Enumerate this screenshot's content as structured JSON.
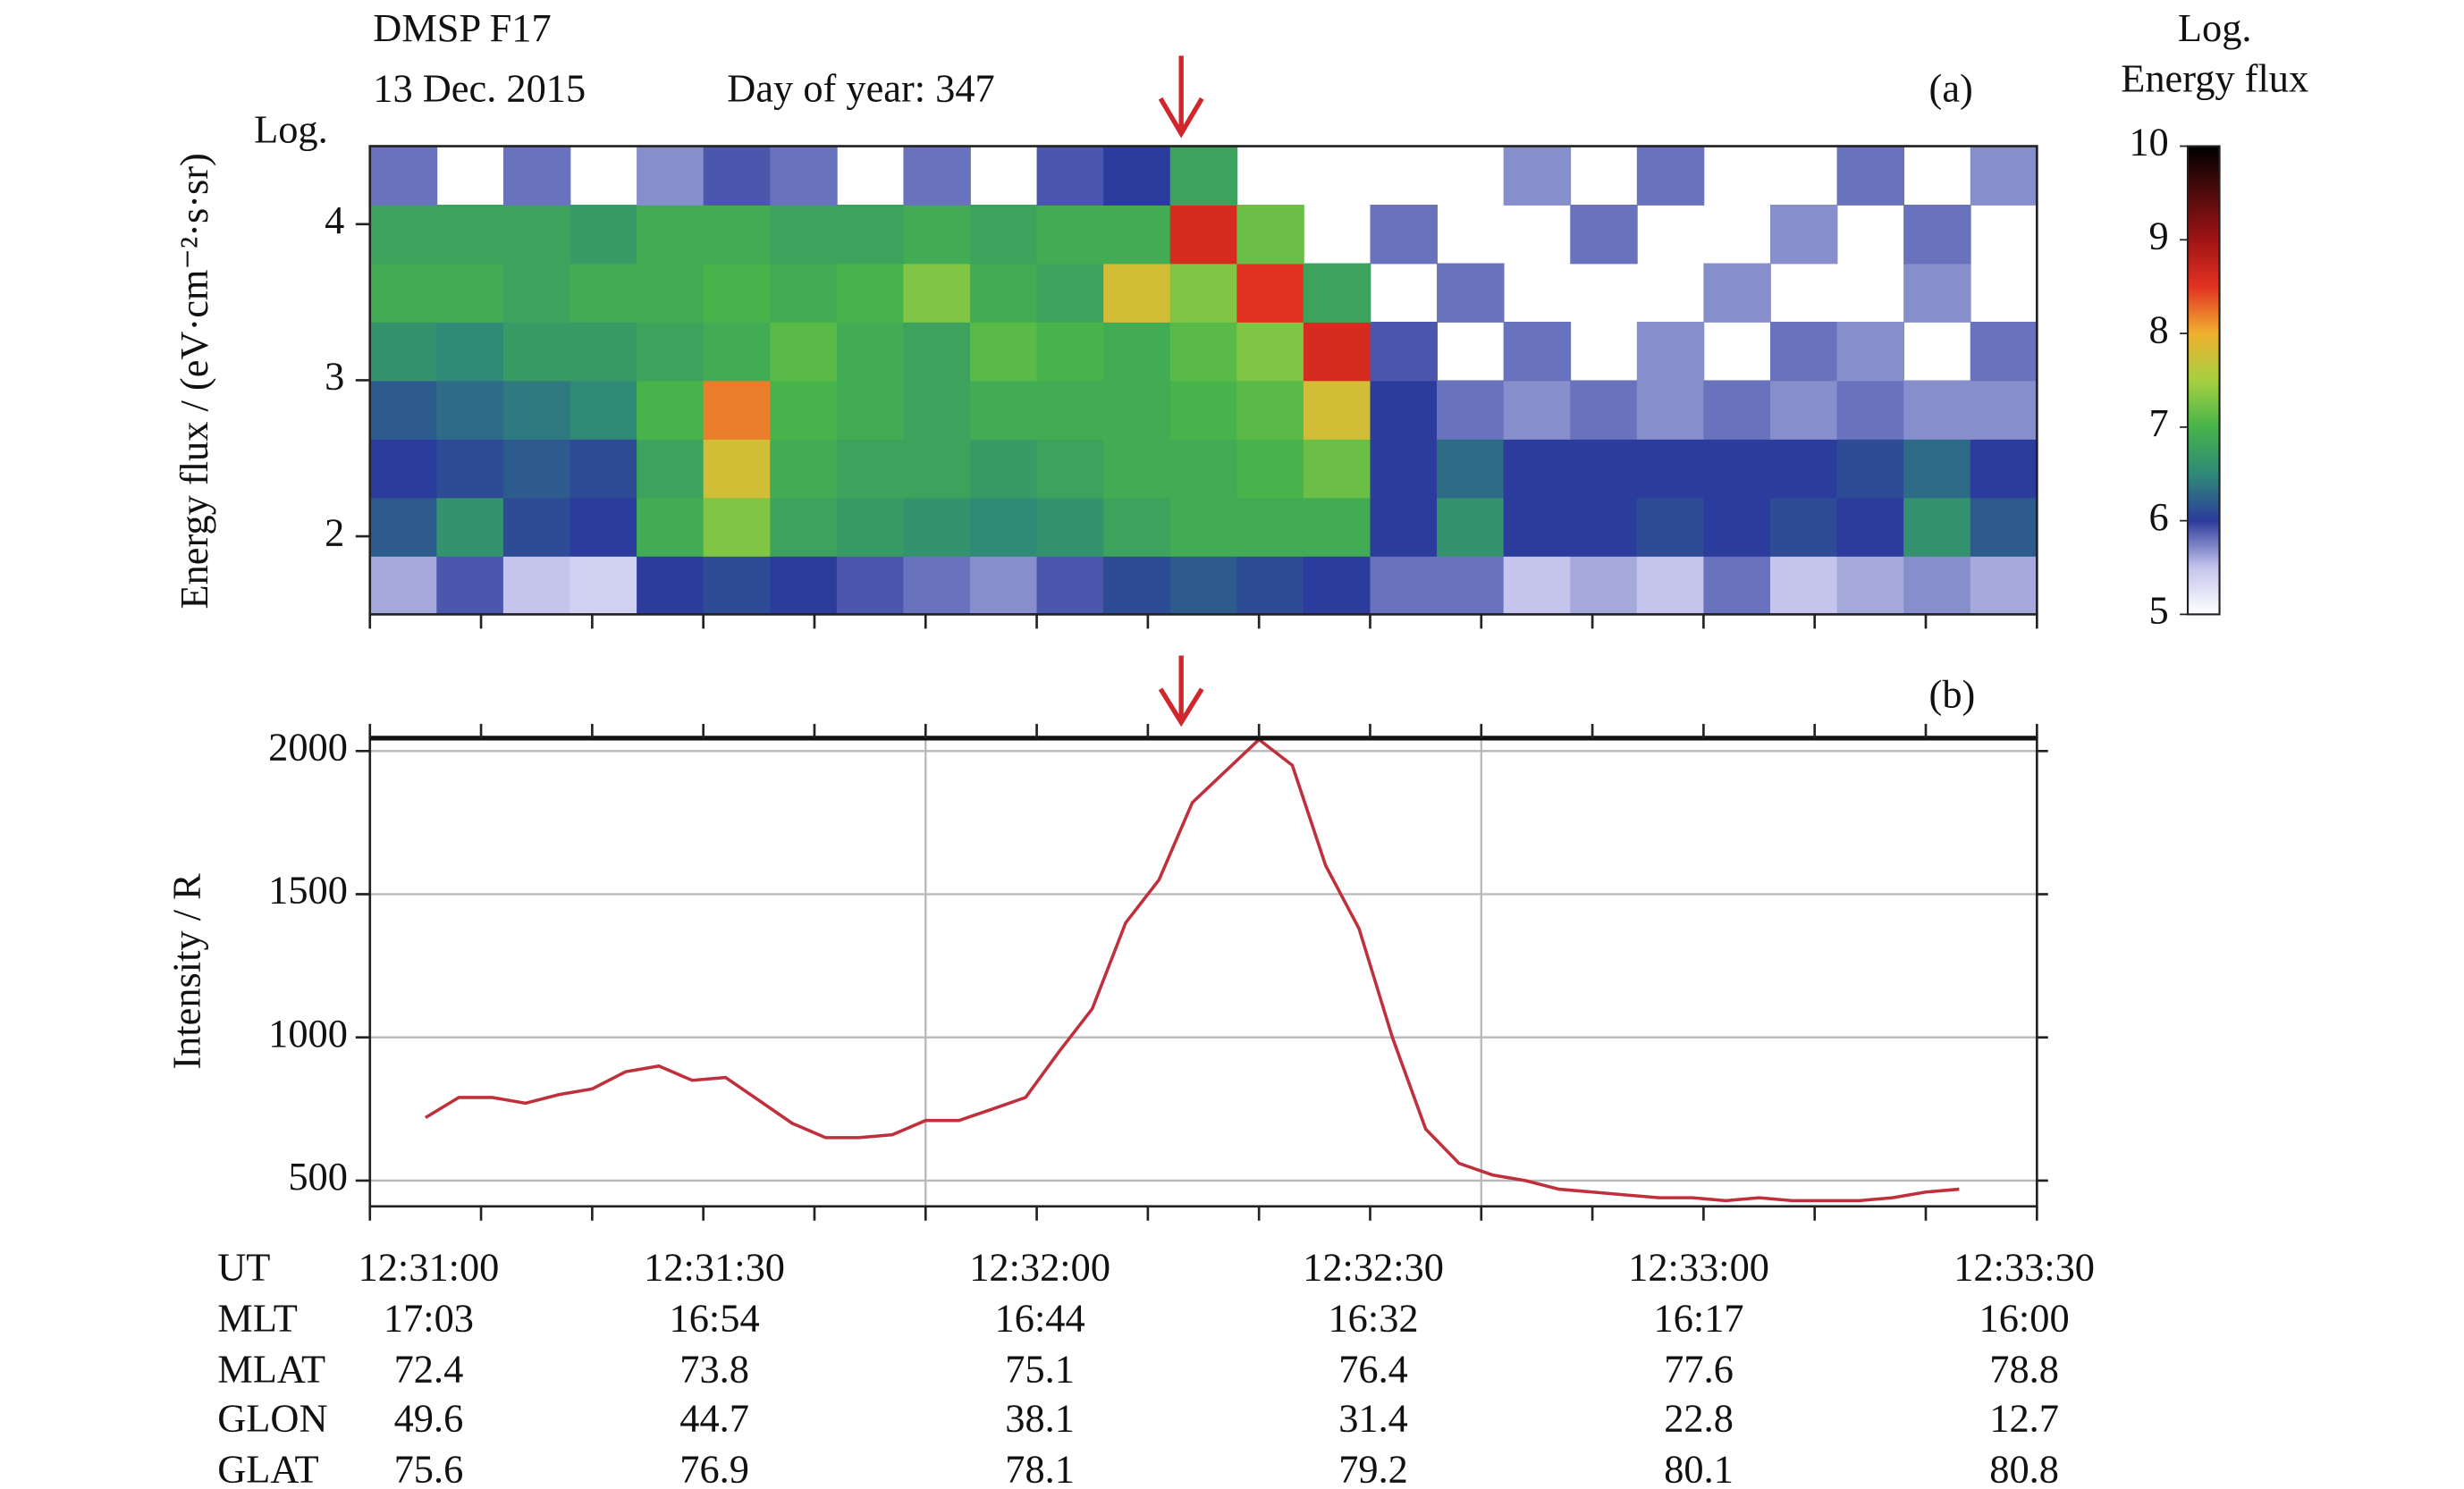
{
  "chart_data": [
    {
      "type": "heatmap",
      "title": "DMSP F17",
      "date": "13 Dec. 2015",
      "day_of_year": "Day of year: 347",
      "panel": "(a)",
      "ylabel_top": "Log.",
      "ylabel": "Energy flux / (eV·cm⁻²·s·sr)",
      "colorbar_title": [
        "Log.",
        "Energy flux"
      ],
      "xlim": [
        "12:31:00",
        "12:33:30"
      ],
      "xticks": [
        "12:31:00",
        "12:31:10",
        "12:31:20",
        "12:31:30",
        "12:31:40",
        "12:31:50",
        "12:32:00",
        "12:32:10",
        "12:32:20",
        "12:32:30",
        "12:32:40",
        "12:32:50",
        "12:33:00",
        "12:33:10",
        "12:33:20",
        "12:33:30"
      ],
      "ylim": [
        1.5,
        4.5
      ],
      "yticks": [
        2,
        3,
        4
      ],
      "arrow_x": "12:32:13",
      "x_bins": [
        "12:31:00",
        "12:31:06",
        "12:31:12",
        "12:31:18",
        "12:31:24",
        "12:31:30",
        "12:31:36",
        "12:31:42",
        "12:31:48",
        "12:31:54",
        "12:32:00",
        "12:32:06",
        "12:32:12",
        "12:32:18",
        "12:32:24",
        "12:32:30",
        "12:32:36",
        "12:32:42",
        "12:32:48",
        "12:32:54",
        "12:33:00",
        "12:33:06",
        "12:33:12",
        "12:33:18",
        "12:33:24",
        "12:33:30"
      ],
      "y_bins": [
        1.5,
        1.875,
        2.25,
        2.625,
        3,
        3.375,
        3.75,
        4.125,
        4.5
      ],
      "z": [
        [
          5.6,
          5.9,
          5.5,
          5.4,
          6.0,
          6.1,
          6.0,
          5.9,
          5.8,
          5.7,
          5.9,
          6.1,
          6.2,
          6.1,
          6.0,
          5.8,
          5.8,
          5.5,
          5.6,
          5.5,
          5.8,
          5.5,
          5.6,
          5.7,
          5.6
        ],
        [
          6.2,
          6.6,
          6.1,
          6.0,
          6.9,
          7.3,
          6.8,
          6.7,
          6.6,
          6.5,
          6.6,
          6.8,
          6.9,
          6.9,
          6.9,
          6.0,
          6.6,
          6.0,
          6.0,
          6.1,
          6.0,
          6.1,
          6.0,
          6.6,
          6.2
        ],
        [
          6.0,
          6.1,
          6.2,
          6.1,
          6.8,
          7.8,
          6.9,
          6.8,
          6.8,
          6.7,
          6.8,
          6.9,
          6.9,
          7.0,
          7.2,
          6.0,
          6.3,
          6.0,
          6.0,
          6.0,
          6.0,
          6.0,
          6.1,
          6.3,
          6.0
        ],
        [
          6.2,
          6.3,
          6.4,
          6.5,
          7.0,
          8.2,
          7.0,
          6.9,
          6.8,
          6.9,
          6.9,
          6.9,
          7.0,
          7.1,
          7.8,
          6.0,
          5.8,
          5.7,
          5.8,
          5.7,
          5.8,
          5.7,
          5.8,
          5.7,
          5.7
        ],
        [
          6.6,
          6.5,
          6.7,
          6.7,
          6.8,
          6.9,
          7.1,
          6.9,
          6.8,
          7.1,
          7.0,
          6.9,
          7.1,
          7.3,
          8.6,
          5.9,
          null,
          5.8,
          null,
          5.7,
          null,
          5.8,
          5.7,
          null,
          5.8
        ],
        [
          6.9,
          6.9,
          6.8,
          6.9,
          6.9,
          7.0,
          6.9,
          7.0,
          7.3,
          6.9,
          6.8,
          7.8,
          7.3,
          8.5,
          6.8,
          null,
          5.8,
          null,
          null,
          null,
          5.7,
          null,
          null,
          5.7,
          null
        ],
        [
          6.8,
          6.8,
          6.8,
          6.7,
          6.9,
          6.9,
          6.8,
          6.8,
          6.9,
          6.8,
          6.9,
          6.9,
          8.6,
          7.2,
          null,
          5.8,
          null,
          null,
          5.8,
          null,
          null,
          5.7,
          null,
          5.8,
          null
        ],
        [
          5.8,
          null,
          5.8,
          null,
          5.7,
          5.9,
          5.8,
          null,
          5.8,
          null,
          5.9,
          6.0,
          6.8,
          null,
          null,
          null,
          null,
          5.7,
          null,
          5.8,
          null,
          null,
          5.8,
          null,
          5.7
        ]
      ],
      "clim": [
        5,
        10
      ],
      "cticks": [
        5,
        6,
        7,
        8,
        9,
        10
      ],
      "colorscale": [
        [
          5,
          "#ffffff"
        ],
        [
          5.5,
          "#c4c4ec"
        ],
        [
          6,
          "#2c3c9c"
        ],
        [
          6.5,
          "#2f8a78"
        ],
        [
          7,
          "#46b44a"
        ],
        [
          7.5,
          "#a6d040"
        ],
        [
          8,
          "#f0b030"
        ],
        [
          8.5,
          "#e23222"
        ],
        [
          9,
          "#a01414"
        ],
        [
          10,
          "#000000"
        ]
      ]
    },
    {
      "type": "line",
      "panel": "(b)",
      "ylabel": "Intensity / R",
      "xlim": [
        "12:31:00",
        "12:33:30"
      ],
      "xticks": [
        "12:31:00",
        "12:31:10",
        "12:31:20",
        "12:31:30",
        "12:31:40",
        "12:31:50",
        "12:32:00",
        "12:32:10",
        "12:32:20",
        "12:32:30",
        "12:32:40",
        "12:32:50",
        "12:33:00",
        "12:33:10",
        "12:33:20",
        "12:33:30"
      ],
      "xgrid": [
        "12:31:50",
        "12:32:40"
      ],
      "ylim": [
        410,
        2045
      ],
      "yticks": [
        500,
        1000,
        1500,
        2000
      ],
      "grid": true,
      "arrow_x": "12:32:13",
      "series": [
        {
          "color": "#c0303c",
          "x": [
            "12:31:05",
            "12:31:08",
            "12:31:11",
            "12:31:14",
            "12:31:17",
            "12:31:20",
            "12:31:23",
            "12:31:26",
            "12:31:29",
            "12:31:32",
            "12:31:35",
            "12:31:38",
            "12:31:41",
            "12:31:44",
            "12:31:47",
            "12:31:50",
            "12:31:53",
            "12:31:56",
            "12:31:59",
            "12:32:02",
            "12:32:05",
            "12:32:08",
            "12:32:11",
            "12:32:14",
            "12:32:17",
            "12:32:20",
            "12:32:23",
            "12:32:26",
            "12:32:29",
            "12:32:32",
            "12:32:35",
            "12:32:38",
            "12:32:41",
            "12:32:44",
            "12:32:47",
            "12:32:50",
            "12:32:53",
            "12:32:56",
            "12:32:59",
            "12:33:02",
            "12:33:05",
            "12:33:08",
            "12:33:11",
            "12:33:14",
            "12:33:17",
            "12:33:20",
            "12:33:23"
          ],
          "values": [
            720,
            790,
            790,
            770,
            800,
            820,
            880,
            900,
            850,
            860,
            780,
            700,
            650,
            650,
            660,
            710,
            710,
            750,
            790,
            950,
            1100,
            1400,
            1550,
            1820,
            1930,
            2040,
            1950,
            1600,
            1380,
            1000,
            680,
            560,
            520,
            500,
            470,
            460,
            450,
            440,
            440,
            430,
            440,
            430,
            430,
            430,
            440,
            460,
            470
          ]
        }
      ]
    }
  ],
  "table": {
    "rows": [
      [
        "UT",
        "12:31:00",
        "12:31:30",
        "12:32:00",
        "12:32:30",
        "12:33:00",
        "12:33:30"
      ],
      [
        "MLT",
        "17:03",
        "16:54",
        "16:44",
        "16:32",
        "16:17",
        "16:00"
      ],
      [
        "MLAT",
        "72.4",
        "73.8",
        "75.1",
        "76.4",
        "77.6",
        "78.8"
      ],
      [
        "GLON",
        "49.6",
        "44.7",
        "38.1",
        "31.4",
        "22.8",
        "12.7"
      ],
      [
        "GLAT",
        "75.6",
        "76.9",
        "78.1",
        "79.2",
        "80.1",
        "80.8"
      ]
    ]
  }
}
